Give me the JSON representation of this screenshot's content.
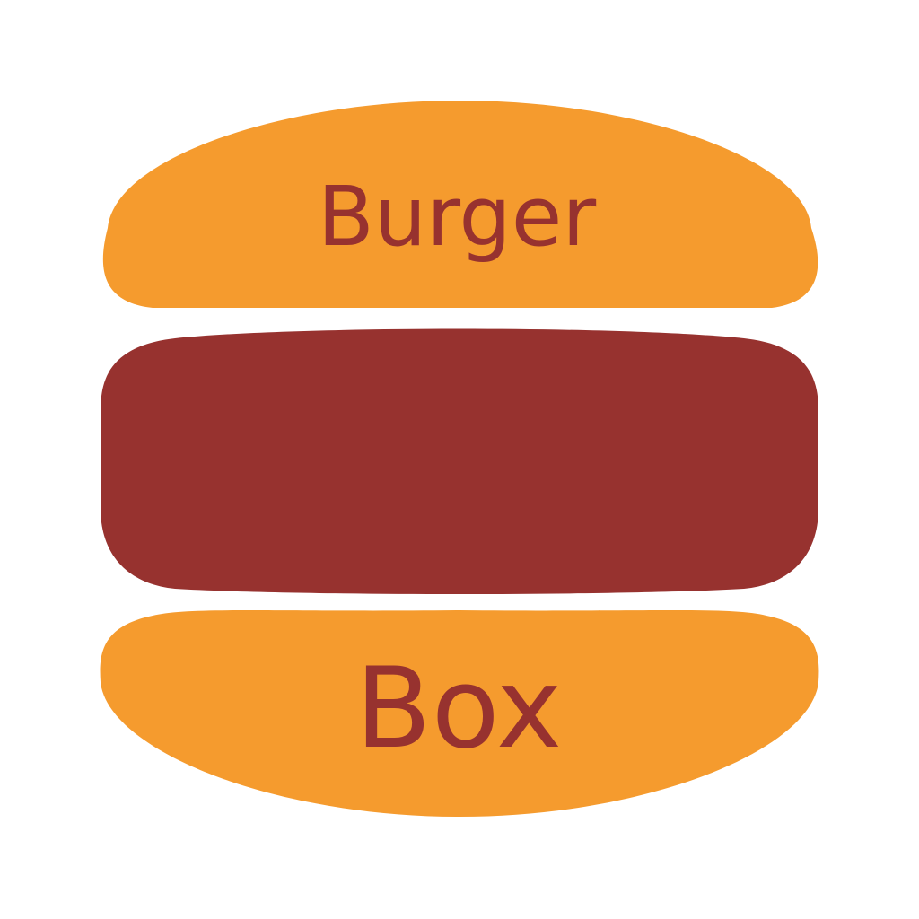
{
  "logo": {
    "top_word": "Burger",
    "bottom_word": "Box"
  },
  "colors": {
    "background": "#ffffff",
    "bun": "#f59b2e",
    "patty": "#97322f",
    "text": "#97322f"
  },
  "icons": {
    "top_bun": "top-bun-icon",
    "patty": "patty-icon",
    "bottom_bun": "bottom-bun-icon"
  }
}
